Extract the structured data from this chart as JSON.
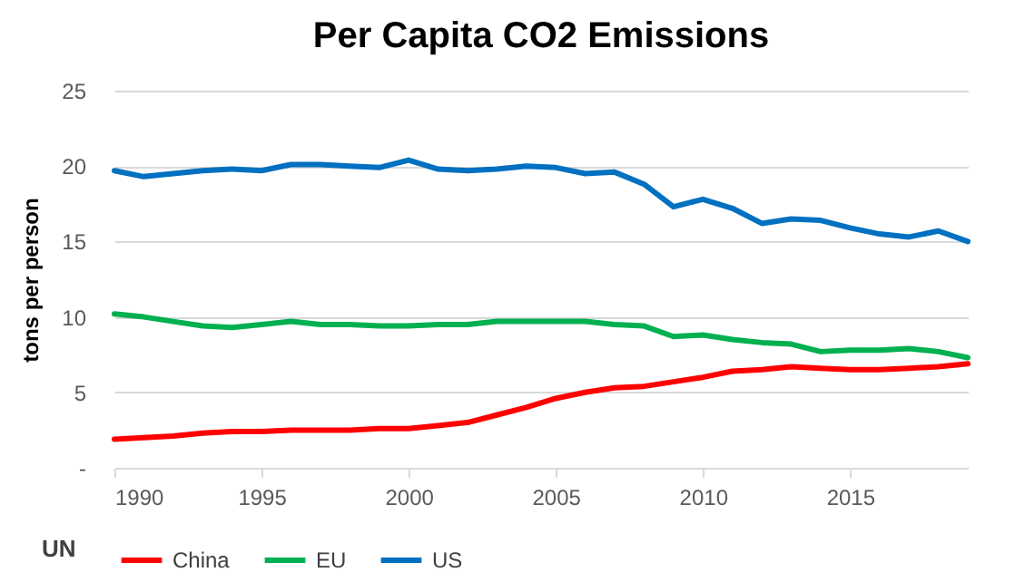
{
  "chart_data": {
    "type": "line",
    "title": "Per Capita CO2 Emissions",
    "ylabel": "tons per person",
    "x": [
      1990,
      1991,
      1992,
      1993,
      1994,
      1995,
      1996,
      1997,
      1998,
      1999,
      2000,
      2001,
      2002,
      2003,
      2004,
      2005,
      2006,
      2007,
      2008,
      2009,
      2010,
      2011,
      2012,
      2013,
      2014,
      2015,
      2016,
      2017,
      2018,
      2019
    ],
    "series": [
      {
        "name": "China",
        "color": "#ff0000",
        "values": [
          1.9,
          2.0,
          2.1,
          2.3,
          2.4,
          2.4,
          2.5,
          2.5,
          2.5,
          2.6,
          2.6,
          2.8,
          3.0,
          3.5,
          4.0,
          4.6,
          5.0,
          5.3,
          5.4,
          5.7,
          6.0,
          6.4,
          6.5,
          6.7,
          6.6,
          6.5,
          6.5,
          6.6,
          6.7,
          6.9
        ]
      },
      {
        "name": "EU",
        "color": "#00b050",
        "values": [
          10.2,
          10.0,
          9.7,
          9.4,
          9.3,
          9.5,
          9.7,
          9.5,
          9.5,
          9.4,
          9.4,
          9.5,
          9.5,
          9.7,
          9.7,
          9.7,
          9.7,
          9.5,
          9.4,
          8.7,
          8.8,
          8.5,
          8.3,
          8.2,
          7.7,
          7.8,
          7.8,
          7.9,
          7.7,
          7.3
        ]
      },
      {
        "name": "US",
        "color": "#0070c0",
        "values": [
          19.7,
          19.3,
          19.5,
          19.7,
          19.8,
          19.7,
          20.1,
          20.1,
          20.0,
          19.9,
          20.4,
          19.8,
          19.7,
          19.8,
          20.0,
          19.9,
          19.5,
          19.6,
          18.8,
          17.3,
          17.8,
          17.2,
          16.2,
          16.5,
          16.4,
          15.9,
          15.5,
          15.3,
          15.7,
          15.0
        ]
      }
    ],
    "xlim": [
      1990,
      2019
    ],
    "xticks": [
      1990,
      1995,
      2000,
      2005,
      2010,
      2015
    ],
    "ylim": [
      0,
      25
    ],
    "yticks": [
      {
        "value": 0,
        "label": "-"
      },
      5,
      10,
      15,
      20,
      25
    ],
    "grid": "y",
    "legend": "bottom",
    "marker": "none",
    "line_style": "solid",
    "annotations": [
      "UN"
    ]
  }
}
